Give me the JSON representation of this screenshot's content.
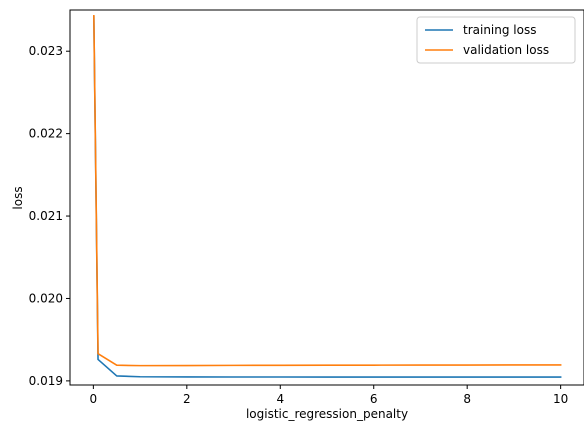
{
  "chart_data": {
    "type": "line",
    "xlabel": "logistic_regression_penalty",
    "ylabel": "loss",
    "xlim": [
      -0.5,
      10.5
    ],
    "ylim": [
      0.01895,
      0.0235
    ],
    "xticks": [
      0,
      2,
      4,
      6,
      8,
      10
    ],
    "xtick_labels": [
      "0",
      "2",
      "4",
      "6",
      "8",
      "10"
    ],
    "yticks": [
      0.019,
      0.02,
      0.021,
      0.022,
      0.023
    ],
    "ytick_labels": [
      "0.019",
      "0.020",
      "0.021",
      "0.022",
      "0.023"
    ],
    "grid": false,
    "legend_position": "top-right",
    "x": [
      0.01,
      0.1,
      0.5,
      1,
      2,
      3,
      4,
      5,
      6,
      7,
      8,
      9,
      10
    ],
    "series": [
      {
        "name": "training loss",
        "color": "#1f77b4",
        "values": [
          0.02342,
          0.01926,
          0.01906,
          0.01905,
          0.019048,
          0.019047,
          0.019047,
          0.019046,
          0.019046,
          0.019046,
          0.019046,
          0.019046,
          0.019046
        ]
      },
      {
        "name": "validation loss",
        "color": "#ff7f0e",
        "values": [
          0.02343,
          0.01933,
          0.01919,
          0.019185,
          0.019186,
          0.019188,
          0.019189,
          0.01919,
          0.019191,
          0.019192,
          0.019192,
          0.019193,
          0.019193
        ]
      }
    ]
  }
}
